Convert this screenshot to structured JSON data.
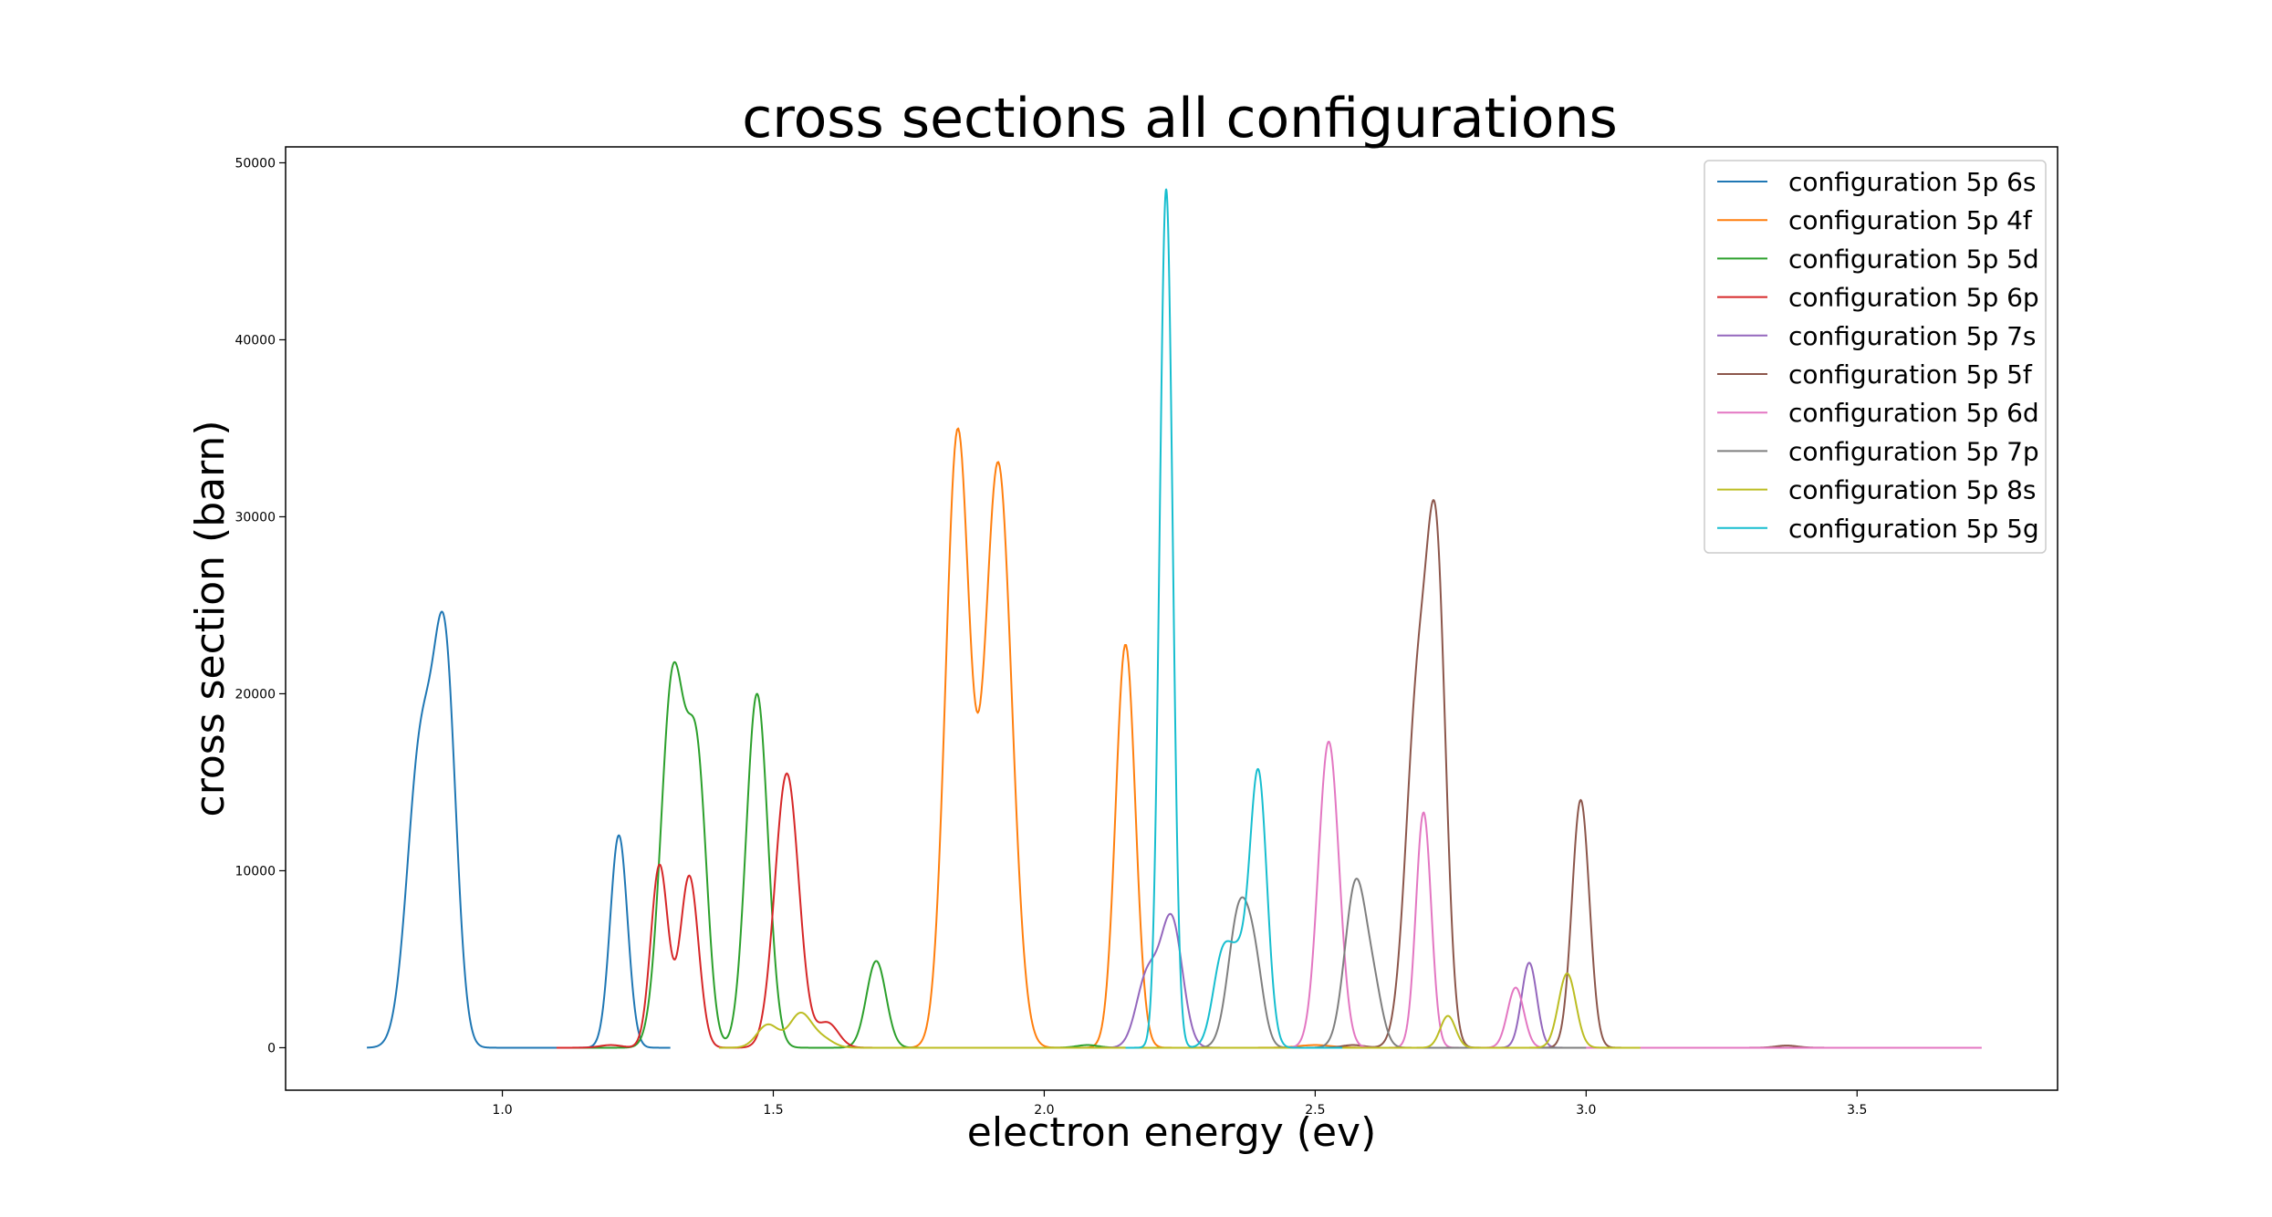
{
  "chart_data": {
    "type": "line",
    "title": "cross sections all configurations",
    "xlabel": "electron energy (ev)",
    "ylabel": "cross section (barn)",
    "xlim": [
      0.6,
      3.87
    ],
    "ylim": [
      -2400,
      50900
    ],
    "x_ticks": [
      1.0,
      1.5,
      2.0,
      2.5,
      3.0,
      3.5
    ],
    "x_tick_labels": [
      "1.0",
      "1.5",
      "2.0",
      "2.5",
      "3.0",
      "3.5"
    ],
    "y_ticks": [
      0,
      10000,
      20000,
      30000,
      40000,
      50000
    ],
    "y_tick_labels": [
      "0",
      "10000",
      "20000",
      "30000",
      "40000",
      "50000"
    ],
    "grid": false,
    "legend_position": "upper right",
    "series": [
      {
        "name": "configuration 5p 6s",
        "color": "#1f77b4",
        "range": [
          0.75,
          1.31
        ],
        "peaks": [
          [
            0.85,
            17000,
            0.025
          ],
          [
            0.895,
            20500,
            0.02
          ],
          [
            1.215,
            12000,
            0.016
          ]
        ]
      },
      {
        "name": "configuration 5p 4f",
        "color": "#ff7f0e",
        "range": [
          1.7,
          3.72
        ],
        "peaks": [
          [
            1.84,
            34500,
            0.022
          ],
          [
            1.915,
            33000,
            0.025
          ],
          [
            2.15,
            22800,
            0.018
          ],
          [
            1.86,
            200,
            0.02
          ],
          [
            2.5,
            150,
            0.03
          ]
        ]
      },
      {
        "name": "configuration 5p 5d",
        "color": "#2ca02c",
        "range": [
          1.1,
          2.3
        ],
        "peaks": [
          [
            1.315,
            21000,
            0.022
          ],
          [
            1.36,
            15000,
            0.018
          ],
          [
            1.47,
            20000,
            0.02
          ],
          [
            1.69,
            4900,
            0.018
          ],
          [
            2.08,
            150,
            0.02
          ]
        ]
      },
      {
        "name": "configuration 5p 6p",
        "color": "#d62728",
        "range": [
          1.1,
          2.6
        ],
        "peaks": [
          [
            1.29,
            10300,
            0.016
          ],
          [
            1.345,
            9700,
            0.017
          ],
          [
            1.525,
            15500,
            0.022
          ],
          [
            1.6,
            1400,
            0.02
          ],
          [
            1.2,
            150,
            0.02
          ]
        ]
      },
      {
        "name": "configuration 5p 7s",
        "color": "#9467bd",
        "range": [
          2.0,
          3.1
        ],
        "peaks": [
          [
            2.19,
            4000,
            0.02
          ],
          [
            2.235,
            7200,
            0.02
          ],
          [
            2.895,
            4800,
            0.014
          ]
        ]
      },
      {
        "name": "configuration 5p 5f",
        "color": "#8c564b",
        "range": [
          2.3,
          3.45
        ],
        "peaks": [
          [
            2.69,
            20000,
            0.022
          ],
          [
            2.725,
            24000,
            0.017
          ],
          [
            2.99,
            14000,
            0.016
          ],
          [
            2.57,
            150,
            0.02
          ],
          [
            3.37,
            120,
            0.02
          ]
        ]
      },
      {
        "name": "configuration 5p 6d",
        "color": "#e377c2",
        "range": [
          2.3,
          3.73
        ],
        "peaks": [
          [
            2.525,
            17300,
            0.019
          ],
          [
            2.7,
            13300,
            0.014
          ],
          [
            2.87,
            3400,
            0.015
          ]
        ]
      },
      {
        "name": "configuration 5p 7p",
        "color": "#7f7f7f",
        "range": [
          2.2,
          3.0
        ],
        "peaks": [
          [
            2.36,
            7700,
            0.02
          ],
          [
            2.39,
            3500,
            0.016
          ],
          [
            2.575,
            9300,
            0.02
          ],
          [
            2.61,
            2500,
            0.016
          ]
        ]
      },
      {
        "name": "configuration 5p 8s",
        "color": "#bcbd22",
        "range": [
          1.4,
          3.1
        ],
        "peaks": [
          [
            1.49,
            1300,
            0.02
          ],
          [
            1.55,
            1900,
            0.02
          ],
          [
            1.59,
            500,
            0.02
          ],
          [
            2.745,
            1800,
            0.014
          ],
          [
            2.965,
            4200,
            0.016
          ]
        ]
      },
      {
        "name": "configuration 5p 5g",
        "color": "#17becf",
        "range": [
          2.15,
          2.55
        ],
        "peaks": [
          [
            2.225,
            48500,
            0.012
          ],
          [
            2.33,
            5300,
            0.018
          ],
          [
            2.395,
            15500,
            0.016
          ],
          [
            2.36,
            3500,
            0.015
          ]
        ]
      }
    ]
  }
}
